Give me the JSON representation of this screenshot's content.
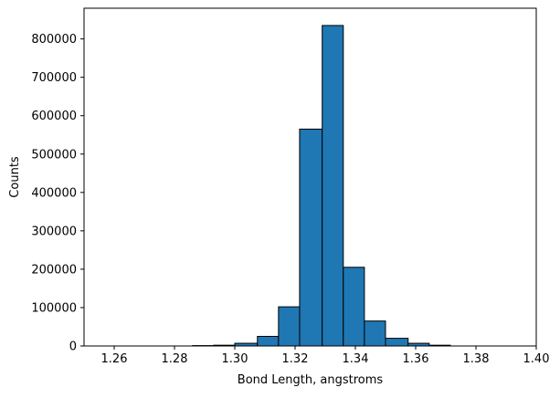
{
  "chart_data": {
    "type": "bar",
    "title": "",
    "xlabel": "Bond Length, angstroms",
    "ylabel": "Counts",
    "xlim": [
      1.25,
      1.4
    ],
    "ylim": [
      0,
      880000
    ],
    "xticks": [
      1.26,
      1.28,
      1.3,
      1.32,
      1.34,
      1.36,
      1.38,
      1.4
    ],
    "xtick_labels": [
      "1.26",
      "1.28",
      "1.30",
      "1.32",
      "1.34",
      "1.36",
      "1.38",
      "1.40"
    ],
    "yticks": [
      0,
      100000,
      200000,
      300000,
      400000,
      500000,
      600000,
      700000,
      800000
    ],
    "ytick_labels": [
      "0",
      "100000",
      "200000",
      "300000",
      "400000",
      "500000",
      "600000",
      "700000",
      "800000"
    ],
    "grid": false,
    "bar_color": "#1f77b4",
    "edge_color": "#000000",
    "bins": [
      {
        "start": 1.258,
        "end": 1.265,
        "count": 0
      },
      {
        "start": 1.265,
        "end": 1.272,
        "count": 0
      },
      {
        "start": 1.272,
        "end": 1.279,
        "count": 0
      },
      {
        "start": 1.279,
        "end": 1.286,
        "count": 0
      },
      {
        "start": 1.286,
        "end": 1.293,
        "count": 1000
      },
      {
        "start": 1.293,
        "end": 1.3,
        "count": 2000
      },
      {
        "start": 1.3,
        "end": 1.3075,
        "count": 7000
      },
      {
        "start": 1.3075,
        "end": 1.3145,
        "count": 25000
      },
      {
        "start": 1.3145,
        "end": 1.3215,
        "count": 102000
      },
      {
        "start": 1.3215,
        "end": 1.329,
        "count": 565000
      },
      {
        "start": 1.329,
        "end": 1.336,
        "count": 835000
      },
      {
        "start": 1.336,
        "end": 1.343,
        "count": 205000
      },
      {
        "start": 1.343,
        "end": 1.35,
        "count": 65000
      },
      {
        "start": 1.35,
        "end": 1.3575,
        "count": 20000
      },
      {
        "start": 1.3575,
        "end": 1.3645,
        "count": 7000
      },
      {
        "start": 1.3645,
        "end": 1.3715,
        "count": 2000
      },
      {
        "start": 1.3715,
        "end": 1.3785,
        "count": 0
      },
      {
        "start": 1.3785,
        "end": 1.386,
        "count": 0
      },
      {
        "start": 1.386,
        "end": 1.393,
        "count": 0
      }
    ]
  }
}
